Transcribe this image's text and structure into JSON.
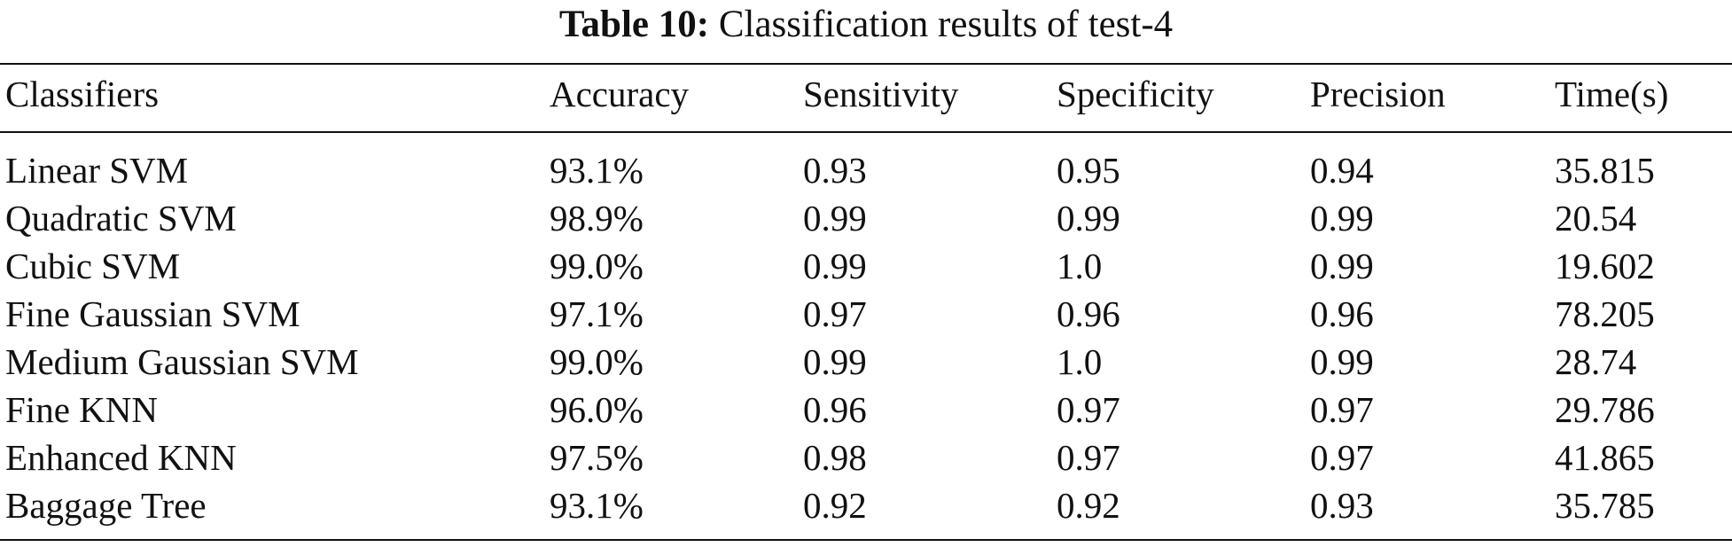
{
  "caption": {
    "label": "Table 10:",
    "text": "Classification results of test-4"
  },
  "table": {
    "headers": [
      "Classifiers",
      "Accuracy",
      "Sensitivity",
      "Specificity",
      "Precision",
      "Time(s)"
    ],
    "rows": [
      [
        "Linear SVM",
        "93.1%",
        "0.93",
        "0.95",
        "0.94",
        "35.815"
      ],
      [
        "Quadratic SVM",
        "98.9%",
        "0.99",
        "0.99",
        "0.99",
        "20.54"
      ],
      [
        "Cubic SVM",
        "99.0%",
        "0.99",
        "1.0",
        "0.99",
        "19.602"
      ],
      [
        "Fine Gaussian SVM",
        "97.1%",
        "0.97",
        "0.96",
        "0.96",
        "78.205"
      ],
      [
        "Medium Gaussian SVM",
        "99.0%",
        "0.99",
        "1.0",
        "0.99",
        "28.74"
      ],
      [
        "Fine KNN",
        "96.0%",
        "0.96",
        "0.97",
        "0.97",
        "29.786"
      ],
      [
        "Enhanced KNN",
        "97.5%",
        "0.98",
        "0.97",
        "0.97",
        "41.865"
      ],
      [
        "Baggage Tree",
        "93.1%",
        "0.92",
        "0.92",
        "0.93",
        "35.785"
      ]
    ]
  }
}
